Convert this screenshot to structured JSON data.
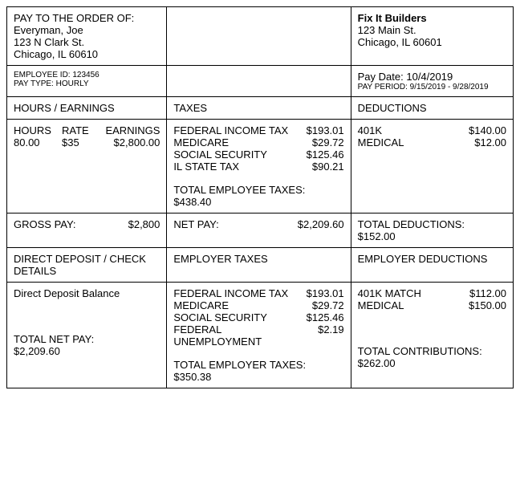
{
  "header": {
    "pay_to_label": "PAY TO THE ORDER OF:",
    "payee_name": "Everyman, Joe",
    "payee_addr1": "123 N Clark St.",
    "payee_addr2": "Chicago, IL 60610",
    "company_name": "Fix It Builders",
    "company_addr1": "123 Main St.",
    "company_addr2": "Chicago, IL 60601"
  },
  "meta": {
    "employee_id_label": "EMPLOYEE ID:",
    "employee_id_value": "123456",
    "pay_type_label": "PAY TYPE:",
    "pay_type_value": "HOURLY",
    "pay_date_label": "Pay Date:",
    "pay_date_value": "10/4/2019",
    "pay_period_label": "PAY PERIOD:",
    "pay_period_value": "9/15/2019 - 9/28/2019"
  },
  "section_headers": {
    "col1": "HOURS / EARNINGS",
    "col2": "TAXES",
    "col3": "DEDUCTIONS"
  },
  "earnings": {
    "col_hours": "HOURS",
    "col_rate": "RATE",
    "col_earnings": "EARNINGS",
    "hours": "80.00",
    "rate": "$35",
    "earnings": "$2,800.00",
    "gross_pay_label": "GROSS PAY:",
    "gross_pay_value": "$2,800"
  },
  "taxes": {
    "items": [
      {
        "label": "FEDERAL INCOME TAX",
        "value": "$193.01"
      },
      {
        "label": "MEDICARE",
        "value": "$29.72"
      },
      {
        "label": "SOCIAL SECURITY",
        "value": "$125.46"
      },
      {
        "label": "IL STATE TAX",
        "value": "$90.21"
      }
    ],
    "total_label": "TOTAL EMPLOYEE TAXES:",
    "total_value": "$438.40",
    "net_pay_label": "NET PAY:",
    "net_pay_value": "$2,209.60"
  },
  "deductions": {
    "items": [
      {
        "label": "401K",
        "value": "$140.00"
      },
      {
        "label": "MEDICAL",
        "value": "$12.00"
      }
    ],
    "total_label": "TOTAL DEDUCTIONS:",
    "total_value": "$152.00"
  },
  "section_headers2": {
    "col1": "DIRECT DEPOSIT / CHECK DETAILS",
    "col2": "EMPLOYER TAXES",
    "col3": "EMPLOYER DEDUCTIONS"
  },
  "deposit": {
    "label": "Direct Deposit Balance",
    "total_net_pay_label": "TOTAL NET PAY:",
    "total_net_pay_value": "$2,209.60"
  },
  "employer_taxes": {
    "items": [
      {
        "label": "FEDERAL INCOME TAX",
        "value": "$193.01"
      },
      {
        "label": "MEDICARE",
        "value": "$29.72"
      },
      {
        "label": "SOCIAL SECURITY",
        "value": "$125.46"
      },
      {
        "label": "FEDERAL UNEMPLOYMENT",
        "value": "$2.19"
      }
    ],
    "total_label": "TOTAL EMPLOYER TAXES:",
    "total_value": "$350.38"
  },
  "employer_deductions": {
    "items": [
      {
        "label": "401K MATCH",
        "value": "$112.00"
      },
      {
        "label": "MEDICAL",
        "value": "$150.00"
      }
    ],
    "total_label": "TOTAL CONTRIBUTIONS:",
    "total_value": "$262.00"
  }
}
